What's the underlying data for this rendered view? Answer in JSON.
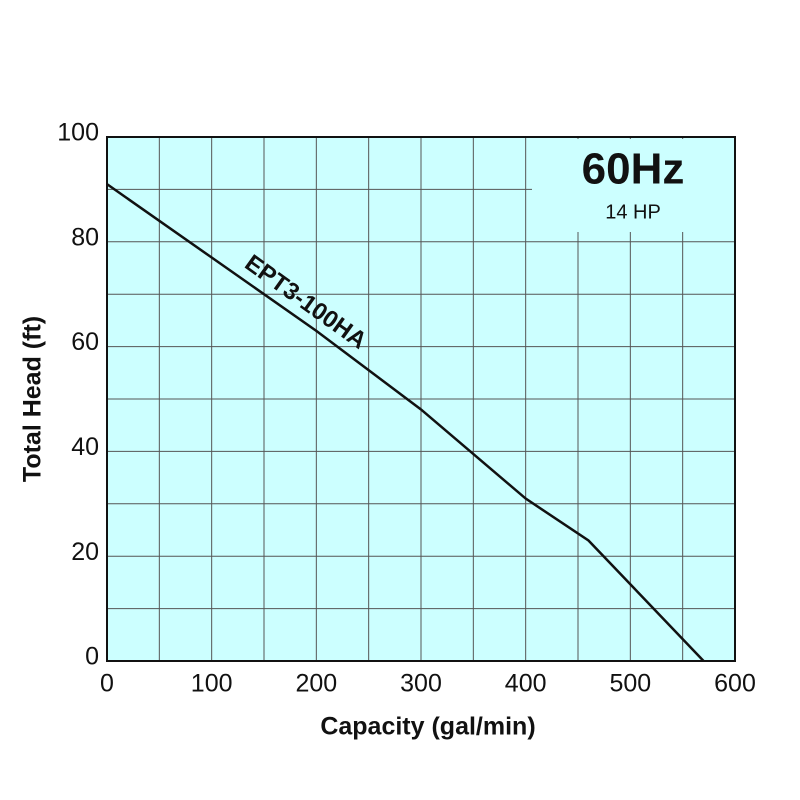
{
  "chart_data": {
    "type": "line",
    "title": "60Hz",
    "subtitle": "14 HP",
    "x_label": "Capacity (gal/min)",
    "y_label": "Total Head (ft)",
    "series": [
      {
        "name": "EPT3-100HA",
        "color": "#111111",
        "x": [
          0,
          100,
          200,
          300,
          400,
          460,
          570
        ],
        "values": [
          91,
          77,
          63,
          48,
          31,
          23,
          0
        ]
      }
    ],
    "xlim": [
      0,
      600
    ],
    "xticks": [
      0,
      100,
      200,
      300,
      400,
      500,
      600
    ],
    "ylim": [
      0,
      100
    ],
    "yticks": [
      0,
      20,
      40,
      60,
      80,
      100
    ],
    "grid": true,
    "background": "#ccffff"
  }
}
